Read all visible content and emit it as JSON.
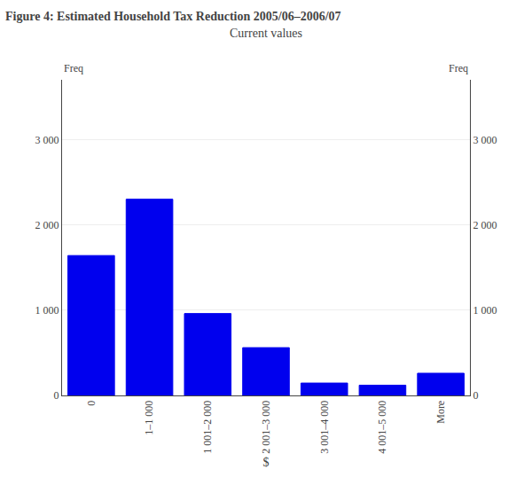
{
  "chart_data": {
    "type": "bar",
    "title": "Figure 4: Estimated Household Tax Reduction 2005/06–2006/07",
    "subtitle": "Current values",
    "categories": [
      "0",
      "1–1 000",
      "1 001–2 000",
      "2 001–3 000",
      "3 001–4 000",
      "4 001–5 000",
      "More"
    ],
    "values": [
      1640,
      2300,
      960,
      560,
      145,
      120,
      260
    ],
    "color": "#0000EE",
    "xlabel": "$",
    "ylabel": "Freq",
    "y2label": "Freq",
    "ylim": [
      0,
      3700
    ],
    "yticks": [
      0,
      {
        "value": 1000,
        "label": "1 000"
      },
      {
        "value": 2000,
        "label": "2 000"
      },
      {
        "value": 3000,
        "label": "3 000"
      }
    ],
    "y2lim": [
      0,
      3700
    ],
    "y2ticks": [
      0,
      {
        "value": 1000,
        "label": "1 000"
      },
      {
        "value": 2000,
        "label": "2 000"
      },
      {
        "value": 3000,
        "label": "3 000"
      }
    ],
    "grid": true
  }
}
